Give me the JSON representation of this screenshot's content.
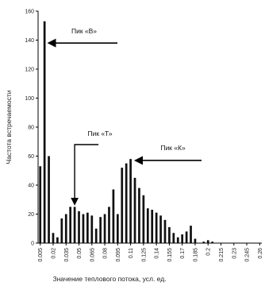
{
  "chart_data": {
    "type": "bar",
    "title": "",
    "xlabel": "Значение теплового потока, усл. ед.",
    "ylabel": "Частота встречаемости",
    "ylim": [
      0,
      160
    ],
    "yticks": [
      0,
      20,
      40,
      60,
      80,
      100,
      120,
      140,
      160
    ],
    "grid": false,
    "bar_color": "#111111",
    "x": [
      0.005,
      0.01,
      0.015,
      0.02,
      0.025,
      0.03,
      0.035,
      0.04,
      0.045,
      0.05,
      0.055,
      0.06,
      0.065,
      0.07,
      0.075,
      0.08,
      0.085,
      0.09,
      0.095,
      0.1,
      0.105,
      0.11,
      0.115,
      0.12,
      0.125,
      0.13,
      0.135,
      0.14,
      0.145,
      0.15,
      0.155,
      0.16,
      0.165,
      0.17,
      0.175,
      0.18,
      0.185,
      0.19,
      0.195,
      0.2,
      0.205,
      0.21,
      0.215,
      0.22,
      0.225,
      0.23,
      0.235,
      0.24,
      0.245,
      0.25,
      0.255,
      0.26
    ],
    "values": [
      53,
      153,
      60,
      7,
      4,
      17,
      20,
      25,
      25,
      22,
      20,
      21,
      19,
      10,
      18,
      20,
      25,
      37,
      20,
      52,
      55,
      58,
      45,
      38,
      33,
      24,
      23,
      21,
      19,
      16,
      11,
      7,
      4,
      6,
      8,
      12,
      3,
      0,
      1,
      2,
      1,
      0,
      0,
      0,
      0,
      0,
      0,
      0,
      0,
      0,
      0,
      0
    ],
    "xtick_labels": [
      "0.005",
      "0.02",
      "0.035",
      "0.05",
      "0.065",
      "0.08",
      "0.095",
      "0.11",
      "0.125",
      "0.14",
      "0.155",
      "0.17",
      "0.185",
      "0.2",
      "0.215",
      "0.23",
      "0.245",
      "0.26"
    ],
    "annotations": [
      {
        "text": "Пик «В»",
        "target_x": 0.01,
        "target_y": 153
      },
      {
        "text": "Пик «Т»",
        "target_x": 0.045,
        "target_y": 25
      },
      {
        "text": "Пик «К»",
        "target_x": 0.11,
        "target_y": 58
      }
    ]
  }
}
